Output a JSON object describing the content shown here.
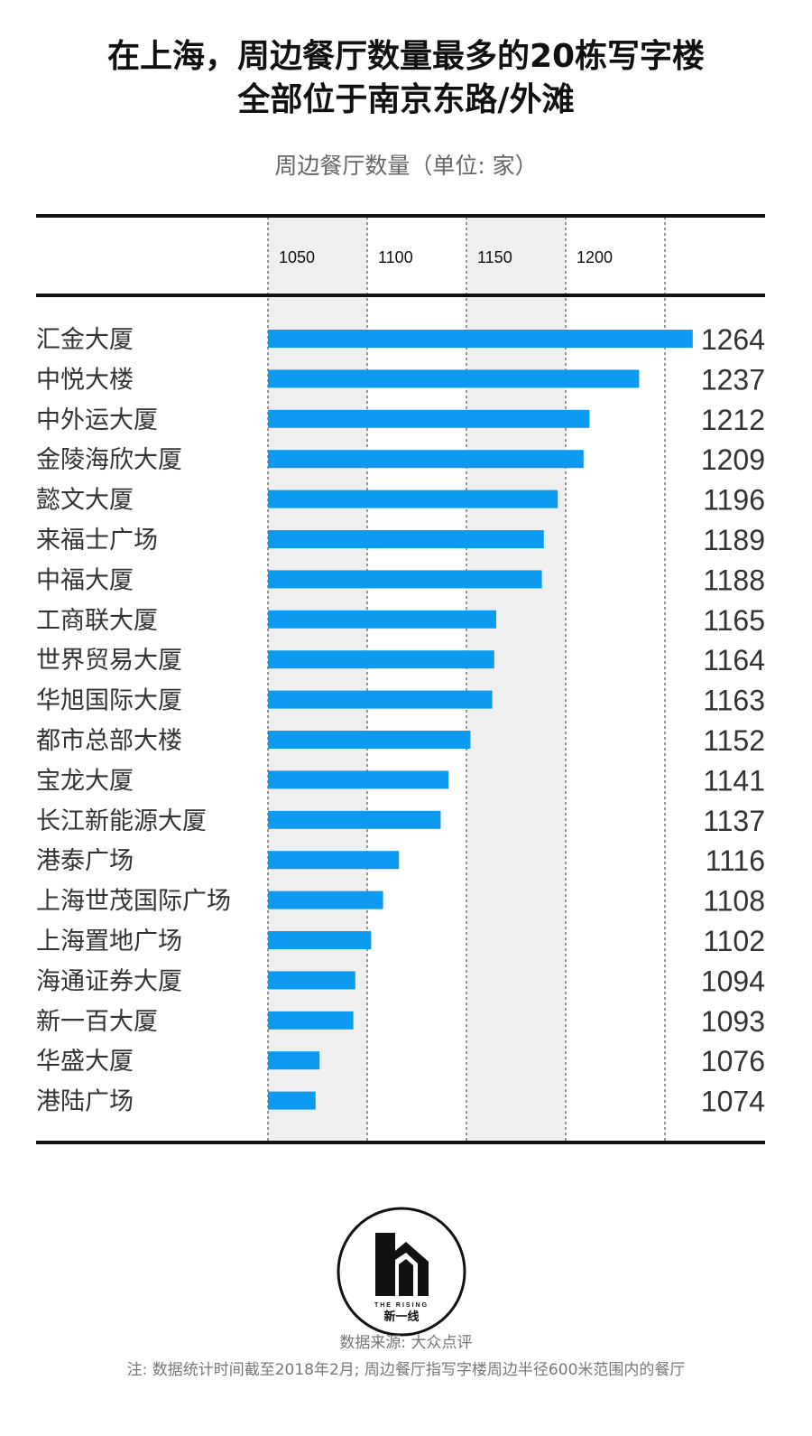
{
  "header": {
    "title_line1": "在上海，周边餐厅数量最多的20栋写字楼",
    "title_line2": "全部位于南京东路/外滩",
    "subtitle": "周边餐厅数量（单位: 家）"
  },
  "chart_data": {
    "type": "bar",
    "orientation": "horizontal",
    "title": "在上海，周边餐厅数量最多的20栋写字楼 全部位于南京东路/外滩",
    "xlabel": "周边餐厅数量（单位: 家）",
    "xlim": [
      1050,
      1250
    ],
    "xticks": [
      1050,
      1100,
      1150,
      1200
    ],
    "categories": [
      "汇金大厦",
      "中悦大楼",
      "中外运大厦",
      "金陵海欣大厦",
      "懿文大厦",
      "来福士广场",
      "中福大厦",
      "工商联大厦",
      "世界贸易大厦",
      "华旭国际大厦",
      "都市总部大楼",
      "宝龙大厦",
      "长江新能源大厦",
      "港泰广场",
      "上海世茂国际广场",
      "上海置地广场",
      "海通证券大厦",
      "新一百大厦",
      "华盛大厦",
      "港陆广场"
    ],
    "values": [
      1264,
      1237,
      1212,
      1209,
      1196,
      1189,
      1188,
      1165,
      1164,
      1163,
      1152,
      1141,
      1137,
      1116,
      1108,
      1102,
      1094,
      1093,
      1076,
      1074
    ],
    "bar_color": "#0d9bf2",
    "band_color": "#efefef",
    "gridlines": "dashed"
  },
  "logo": {
    "text_top": "THE RISING",
    "text_bottom": "新一线"
  },
  "footer": {
    "source": "数据来源: 大众点评",
    "note": "注: 数据统计时间截至2018年2月; 周边餐厅指写字楼周边半径600米范围内的餐厅"
  }
}
